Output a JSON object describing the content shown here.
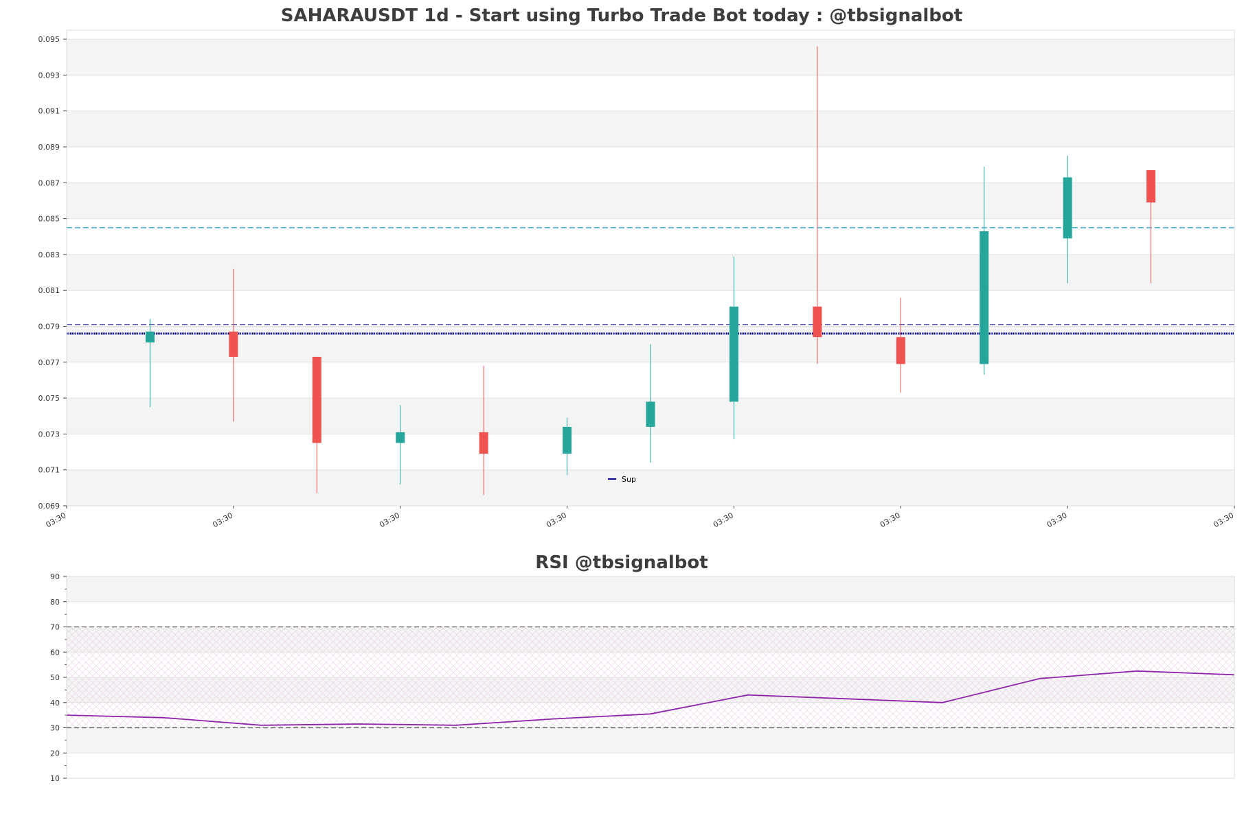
{
  "chart_data": [
    {
      "type": "candlestick",
      "title": "SAHARAUSDT 1d - Start using Turbo Trade Bot today : @tbsignalbot",
      "ylim": [
        0.069,
        0.0955
      ],
      "y_ticks": [
        "0.069",
        "0.071",
        "0.073",
        "0.075",
        "0.077",
        "0.079",
        "0.081",
        "0.083",
        "0.085",
        "0.087",
        "0.089",
        "0.091",
        "0.093",
        "0.095"
      ],
      "x_ticks": [
        "03:30",
        "03:30",
        "03:30",
        "03:30",
        "03:30",
        "03:30",
        "03:30",
        "03:30"
      ],
      "grid": true,
      "candles": [
        {
          "open": 0.0781,
          "high": 0.0794,
          "low": 0.0745,
          "close": 0.0787
        },
        {
          "open": 0.0787,
          "high": 0.0822,
          "low": 0.0737,
          "close": 0.0773
        },
        {
          "open": 0.0773,
          "high": 0.0773,
          "low": 0.0697,
          "close": 0.0725
        },
        {
          "open": 0.0725,
          "high": 0.0746,
          "low": 0.0702,
          "close": 0.0731
        },
        {
          "open": 0.0731,
          "high": 0.0768,
          "low": 0.0696,
          "close": 0.0719
        },
        {
          "open": 0.0719,
          "high": 0.0739,
          "low": 0.0707,
          "close": 0.0734
        },
        {
          "open": 0.0734,
          "high": 0.078,
          "low": 0.0714,
          "close": 0.0748
        },
        {
          "open": 0.0748,
          "high": 0.0829,
          "low": 0.0727,
          "close": 0.0801
        },
        {
          "open": 0.0801,
          "high": 0.0946,
          "low": 0.0769,
          "close": 0.0784
        },
        {
          "open": 0.0784,
          "high": 0.0806,
          "low": 0.0753,
          "close": 0.0769
        },
        {
          "open": 0.0769,
          "high": 0.0879,
          "low": 0.0763,
          "close": 0.0843
        },
        {
          "open": 0.0839,
          "high": 0.0885,
          "low": 0.0814,
          "close": 0.0873
        },
        {
          "open": 0.0877,
          "high": 0.0877,
          "low": 0.0814,
          "close": 0.0859
        }
      ],
      "hlines": [
        {
          "value": 0.0845,
          "style": "dashed",
          "color": "#4fb3d9"
        },
        {
          "value": 0.0791,
          "style": "dashed",
          "color": "#4a4aa0"
        },
        {
          "value": 0.0786,
          "style": "dotted",
          "color": "#00008b"
        }
      ],
      "legend": {
        "label": "Sup",
        "color": "#00008b",
        "placement": "lower-center"
      },
      "colors": {
        "up": "#26a69a",
        "down": "#ef5350"
      }
    },
    {
      "type": "line",
      "title": "RSI @tbsignalbot",
      "ylim": [
        10,
        90
      ],
      "y_ticks": [
        "10",
        "20",
        "30",
        "40",
        "50",
        "60",
        "70",
        "80",
        "90"
      ],
      "series": [
        {
          "values": [
            35,
            34,
            31,
            31.5,
            31,
            33.5,
            35.5,
            43,
            41.5,
            40,
            49.5,
            52.5,
            51
          ],
          "color": "#8e24aa"
        }
      ],
      "hlines": [
        70,
        30
      ],
      "band": [
        30,
        70
      ],
      "grid": true
    }
  ]
}
